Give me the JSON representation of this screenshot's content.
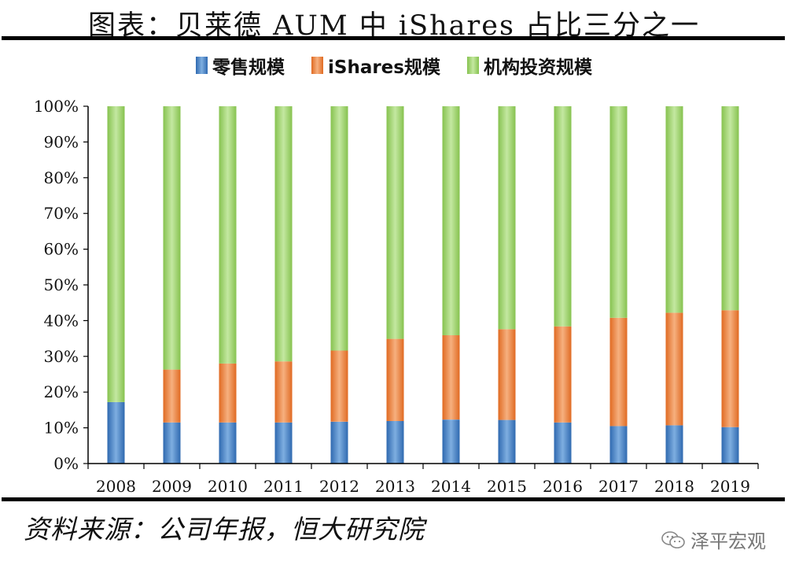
{
  "header": {
    "title": "图表：贝莱德 AUM 中 iShares 占比三分之一"
  },
  "footer": {
    "source": "资料来源：公司年报，恒大研究院",
    "watermark": "泽平宏观"
  },
  "colors": {
    "retail": "#3a78c0",
    "ishares": "#ed7a33",
    "institutional": "#97cf62",
    "axis": "#000000"
  },
  "chart_data": {
    "type": "bar",
    "stacked": true,
    "normalized": true,
    "title": "图表：贝莱德 AUM 中 iShares 占比三分之一",
    "categories": [
      "2008",
      "2009",
      "2010",
      "2011",
      "2012",
      "2013",
      "2014",
      "2015",
      "2016",
      "2017",
      "2018",
      "2019"
    ],
    "series": [
      {
        "name": "零售规模",
        "values": [
          17.2,
          11.5,
          11.5,
          11.5,
          11.7,
          11.9,
          12.3,
          12.2,
          11.5,
          10.5,
          10.7,
          10.2
        ]
      },
      {
        "name": "iShares规模",
        "values": [
          0.0,
          14.8,
          16.5,
          17.1,
          19.9,
          23.0,
          23.6,
          25.4,
          26.9,
          30.3,
          31.5,
          32.7
        ]
      },
      {
        "name": "机构投资规模",
        "values": [
          82.8,
          73.7,
          72.0,
          71.4,
          68.4,
          65.1,
          64.1,
          62.4,
          61.6,
          59.2,
          57.8,
          57.1
        ]
      }
    ],
    "ylim": [
      0,
      100
    ],
    "yticks": [
      "0%",
      "10%",
      "20%",
      "30%",
      "40%",
      "50%",
      "60%",
      "70%",
      "80%",
      "90%",
      "100%"
    ],
    "xlabel": "",
    "ylabel": "",
    "legend_position": "top",
    "grid": false
  }
}
